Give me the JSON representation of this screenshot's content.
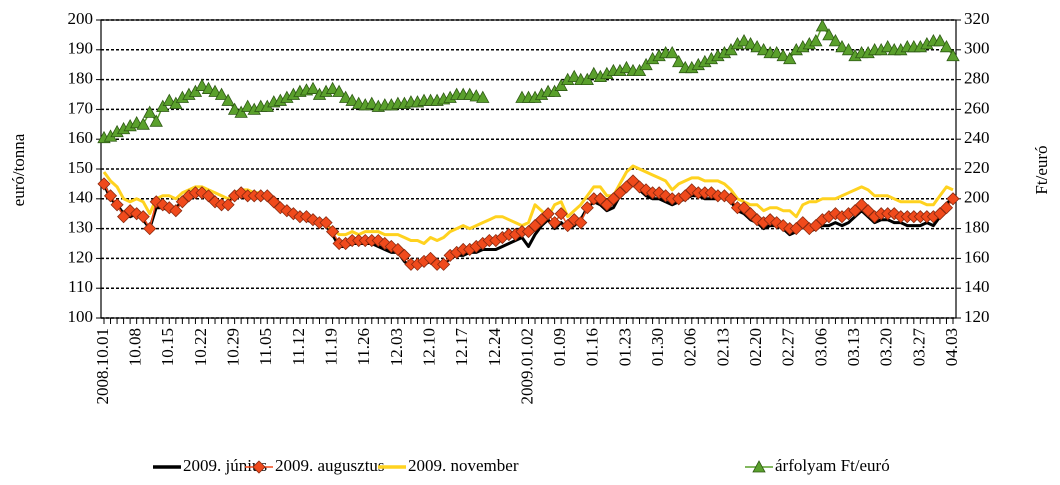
{
  "chart_data": {
    "type": "line",
    "ylabel": "euró/tonna",
    "y2label": "Ft/euró",
    "categories": [
      "2008.10.01",
      null,
      null,
      null,
      null,
      "10.08",
      null,
      null,
      null,
      null,
      "10.15",
      null,
      null,
      null,
      null,
      "10.22",
      null,
      null,
      null,
      null,
      "10.29",
      null,
      null,
      null,
      null,
      "11.05",
      null,
      null,
      null,
      null,
      "11.12",
      null,
      null,
      null,
      null,
      "11.19",
      null,
      null,
      null,
      null,
      "11.26",
      null,
      null,
      null,
      null,
      "12.03",
      null,
      null,
      null,
      null,
      "12.10",
      null,
      null,
      null,
      null,
      "12.17",
      null,
      null,
      null,
      null,
      "12.24",
      null,
      null,
      null,
      null,
      "2009.01.02",
      null,
      null,
      null,
      null,
      "01.09",
      null,
      null,
      null,
      null,
      "01.16",
      null,
      null,
      null,
      null,
      "01.23",
      null,
      null,
      null,
      null,
      "01.30",
      null,
      null,
      null,
      null,
      "02.06",
      null,
      null,
      null,
      null,
      "02.13",
      null,
      null,
      null,
      null,
      "02.20",
      null,
      null,
      null,
      null,
      "02.27",
      null,
      null,
      null,
      null,
      "03.06",
      null,
      null,
      null,
      null,
      "03.13",
      null,
      null,
      null,
      null,
      "03.20",
      null,
      null,
      null,
      null,
      "03.27",
      null,
      null,
      null,
      null,
      "04.03"
    ],
    "ylim": [
      100,
      200
    ],
    "yticks": [
      100,
      110,
      120,
      130,
      140,
      150,
      160,
      170,
      180,
      190,
      200
    ],
    "y2lim": [
      120,
      320
    ],
    "y2ticks": [
      120,
      140,
      160,
      180,
      200,
      220,
      240,
      260,
      280,
      300,
      320
    ],
    "grid": true,
    "series": [
      {
        "name": "2009. június",
        "color": "#000000",
        "marker": "none",
        "values": [
          145,
          140,
          138,
          135,
          134,
          135,
          133,
          130,
          137,
          137,
          136,
          137,
          139,
          141,
          142,
          142,
          141,
          139,
          138,
          139,
          141,
          142,
          142,
          141,
          141,
          141,
          139,
          137,
          136,
          135,
          134,
          133,
          132,
          132,
          131,
          128,
          124,
          124,
          125,
          125,
          125,
          125,
          124,
          123,
          122,
          122,
          119,
          117,
          118,
          118,
          119,
          117,
          118,
          120,
          121,
          121,
          122,
          122,
          123,
          123,
          123,
          124,
          125,
          126,
          127,
          124,
          128,
          131,
          133,
          130,
          132,
          130,
          131,
          133,
          137,
          139,
          138,
          136,
          137,
          141,
          143,
          145,
          143,
          141,
          140,
          140,
          139,
          138,
          139,
          140,
          141,
          141,
          140,
          140,
          140,
          141,
          139,
          136,
          135,
          133,
          132,
          130,
          131,
          131,
          130,
          128,
          129,
          131,
          129,
          130,
          131,
          131,
          132,
          131,
          132,
          134,
          136,
          134,
          132,
          133,
          133,
          132,
          132,
          131,
          131,
          131,
          132,
          131,
          134,
          138,
          141
        ]
      },
      {
        "name": "2009. augusztus",
        "color": "#f04a1c",
        "marker": "diamond",
        "values": [
          145,
          141,
          138,
          134,
          136,
          135,
          134,
          130,
          139,
          138,
          137,
          136,
          139,
          141,
          142,
          142,
          141,
          139,
          138,
          138,
          141,
          142,
          141,
          141,
          141,
          141,
          139,
          137,
          136,
          135,
          134,
          134,
          133,
          132,
          132,
          129,
          125,
          125,
          126,
          126,
          126,
          126,
          126,
          125,
          124,
          123,
          121,
          118,
          118,
          119,
          120,
          118,
          118,
          121,
          122,
          123,
          123,
          124,
          125,
          126,
          126,
          127,
          128,
          128,
          129,
          129,
          131,
          133,
          135,
          132,
          135,
          131,
          133,
          132,
          137,
          140,
          140,
          138,
          140,
          142,
          144,
          146,
          144,
          143,
          142,
          142,
          141,
          140,
          140,
          141,
          143,
          142,
          142,
          142,
          141,
          141,
          140,
          137,
          137,
          135,
          133,
          132,
          133,
          132,
          131,
          130,
          130,
          132,
          130,
          131,
          133,
          134,
          135,
          134,
          135,
          136,
          138,
          136,
          134,
          135,
          135,
          135,
          134,
          134,
          134,
          134,
          134,
          134,
          135,
          137,
          140
        ]
      },
      {
        "name": "2009. november",
        "color": "#ffd21f",
        "marker": "none",
        "values": [
          149,
          146,
          144,
          140,
          139,
          140,
          139,
          135,
          140,
          141,
          141,
          140,
          142,
          143,
          144,
          144,
          143,
          142,
          141,
          140,
          142,
          143,
          143,
          142,
          142,
          141,
          139,
          137,
          136,
          135,
          134,
          133,
          133,
          132,
          131,
          130,
          128,
          128,
          129,
          128,
          129,
          129,
          129,
          128,
          128,
          128,
          127,
          126,
          126,
          125,
          127,
          126,
          127,
          129,
          130,
          131,
          130,
          131,
          132,
          133,
          134,
          134,
          133,
          132,
          131,
          132,
          138,
          136,
          134,
          138,
          139,
          134,
          136,
          138,
          141,
          144,
          144,
          141,
          141,
          145,
          149,
          151,
          150,
          149,
          148,
          147,
          146,
          143,
          145,
          146,
          147,
          147,
          146,
          146,
          146,
          145,
          143,
          140,
          139,
          138,
          138,
          136,
          137,
          137,
          136,
          136,
          134,
          138,
          139,
          139,
          140,
          140,
          140,
          141,
          142,
          143,
          144,
          143,
          141,
          141,
          141,
          140,
          139,
          139,
          139,
          139,
          138,
          138,
          141,
          144,
          143
        ]
      },
      {
        "name": "árfolyam Ft/euró",
        "color": "#5aa02c",
        "marker": "triangle",
        "axis": "y2",
        "values": [
          241,
          242,
          245,
          247,
          249,
          251,
          250,
          258,
          252,
          262,
          266,
          264,
          268,
          270,
          272,
          276,
          274,
          272,
          270,
          266,
          260,
          258,
          262,
          260,
          262,
          262,
          265,
          266,
          268,
          270,
          272,
          273,
          274,
          270,
          272,
          274,
          272,
          268,
          266,
          264,
          263,
          264,
          262,
          263,
          263,
          264,
          264,
          265,
          265,
          266,
          266,
          266,
          267,
          268,
          270,
          270,
          270,
          269,
          268,
          null,
          null,
          null,
          null,
          null,
          268,
          268,
          268,
          270,
          272,
          272,
          276,
          280,
          282,
          280,
          280,
          284,
          282,
          284,
          286,
          286,
          288,
          286,
          286,
          290,
          294,
          296,
          298,
          298,
          292,
          288,
          288,
          290,
          292,
          294,
          296,
          298,
          300,
          304,
          306,
          304,
          302,
          300,
          298,
          298,
          296,
          294,
          300,
          302,
          304,
          306,
          316,
          310,
          306,
          302,
          300,
          296,
          298,
          298,
          300,
          300,
          302,
          300,
          300,
          302,
          302,
          302,
          304,
          306,
          306,
          302,
          296
        ]
      }
    ]
  }
}
